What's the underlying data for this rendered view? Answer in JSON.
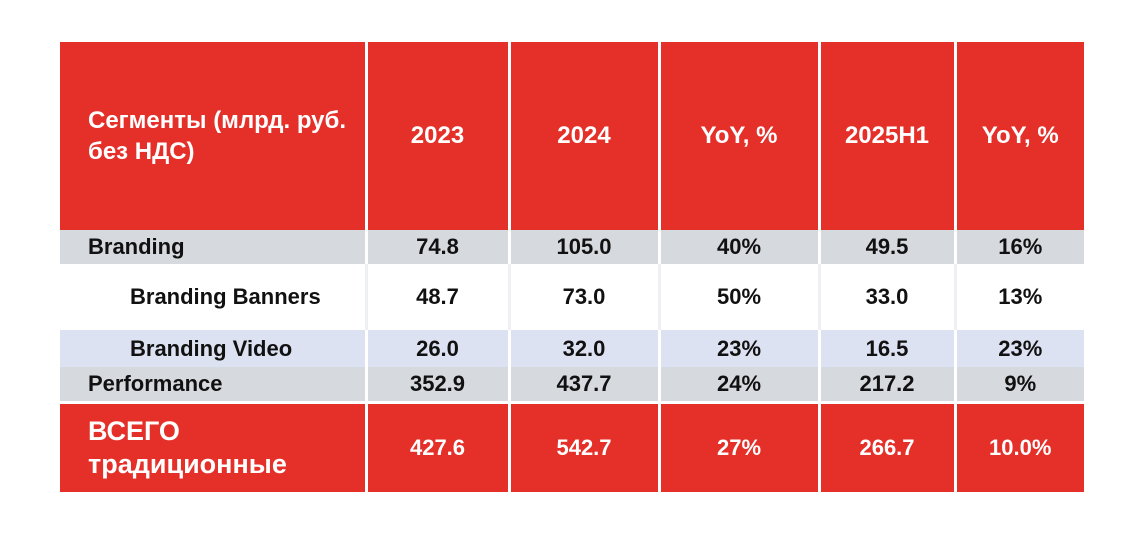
{
  "header": {
    "segment": "Сегменты (млрд. руб. без НДС)",
    "col_2023": "2023",
    "col_2024": "2024",
    "col_yoy1": "YoY, %",
    "col_2025h1": "2025H1",
    "col_yoy2": "YoY, %"
  },
  "rows": [
    {
      "name": "Branding",
      "v2023": "74.8",
      "v2024": "105.0",
      "yoy1": "40%",
      "v2025h1": "49.5",
      "yoy2": "16%"
    },
    {
      "name": "Branding Banners",
      "v2023": "48.7",
      "v2024": "73.0",
      "yoy1": "50%",
      "v2025h1": "33.0",
      "yoy2": "13%"
    },
    {
      "name": "Branding Video",
      "v2023": "26.0",
      "v2024": "32.0",
      "yoy1": "23%",
      "v2025h1": "16.5",
      "yoy2": "23%"
    },
    {
      "name": "Performance",
      "v2023": "352.9",
      "v2024": "437.7",
      "yoy1": "24%",
      "v2025h1": "217.2",
      "yoy2": "9%"
    }
  ],
  "total": {
    "name_line1": "ВСЕГО",
    "name_line2": "традиционные",
    "v2023": "427.6",
    "v2024": "542.7",
    "yoy1": "27%",
    "v2025h1": "266.7",
    "yoy2": "10.0%"
  },
  "colors": {
    "header_red": "#e5302a",
    "percent_red": "#e03127",
    "row_grey": "#d6d9de",
    "row_lavender": "#dde2f2"
  }
}
